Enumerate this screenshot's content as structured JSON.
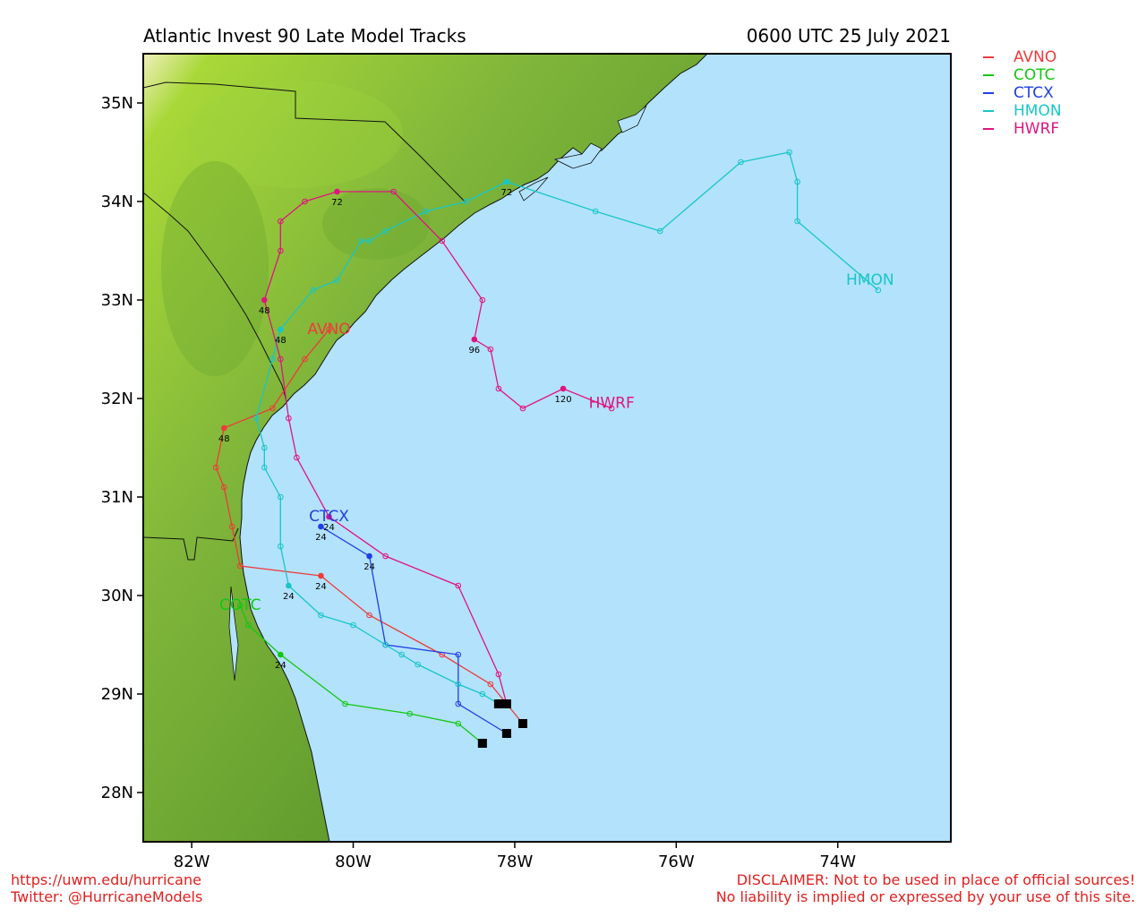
{
  "header": {
    "title": "Atlantic Invest 90 Late Model Tracks",
    "datetime": "0600 UTC 25 July 2021"
  },
  "legend": [
    {
      "name": "AVNO",
      "color": "#ee3b3b"
    },
    {
      "name": "COTC",
      "color": "#12c812"
    },
    {
      "name": "CTCX",
      "color": "#1f3ee6"
    },
    {
      "name": "HMON",
      "color": "#18c6c8"
    },
    {
      "name": "HWRF",
      "color": "#e0147f"
    }
  ],
  "footer": {
    "url": "https://uwm.edu/hurricane",
    "twitter": "Twitter: @HurricaneModels",
    "disclaimer_1": "DISCLAIMER: Not to be used in place of official sources!",
    "disclaimer_2": "No liability is implied or expressed by your use of this site."
  },
  "map": {
    "lon_range": [
      -82.6,
      -72.6
    ],
    "lat_range": [
      27.5,
      35.5
    ],
    "ocean_color": "#b3e2fc",
    "land_color": "#5e9a2c",
    "x_ticks": [
      {
        "v": -82,
        "label": "82W"
      },
      {
        "v": -80,
        "label": "80W"
      },
      {
        "v": -78,
        "label": "78W"
      },
      {
        "v": -76,
        "label": "76W"
      },
      {
        "v": -74,
        "label": "74W"
      }
    ],
    "y_ticks": [
      {
        "v": 28,
        "label": "28N"
      },
      {
        "v": 29,
        "label": "29N"
      },
      {
        "v": 30,
        "label": "30N"
      },
      {
        "v": 31,
        "label": "31N"
      },
      {
        "v": 32,
        "label": "32N"
      },
      {
        "v": 33,
        "label": "33N"
      },
      {
        "v": 34,
        "label": "34N"
      },
      {
        "v": 35,
        "label": "35N"
      }
    ]
  },
  "chart_data": {
    "type": "scatter",
    "series": [
      {
        "name": "AVNO",
        "color": "#ee3b3b",
        "label": {
          "text": "AVNO",
          "lon": -80.3,
          "lat": 32.7
        },
        "points": [
          [
            -77.9,
            28.7
          ],
          [
            -78.3,
            29.1
          ],
          [
            -78.9,
            29.4
          ],
          [
            -79.8,
            29.8
          ],
          [
            -80.4,
            30.2
          ],
          [
            -81.4,
            30.3
          ],
          [
            -81.5,
            30.7
          ],
          [
            -81.6,
            31.1
          ],
          [
            -81.7,
            31.3
          ],
          [
            -81.6,
            31.7
          ],
          [
            -81.0,
            31.9
          ],
          [
            -80.6,
            32.4
          ],
          [
            -80.3,
            32.7
          ]
        ],
        "labels": [
          {
            "i": 4,
            "text": "24"
          },
          {
            "i": 9,
            "text": "48"
          }
        ]
      },
      {
        "name": "COTC",
        "color": "#12c812",
        "label": {
          "text": "COTC",
          "lon": -81.4,
          "lat": 29.9
        },
        "points": [
          [
            -78.4,
            28.5
          ],
          [
            -78.7,
            28.7
          ],
          [
            -79.3,
            28.8
          ],
          [
            -80.1,
            28.9
          ],
          [
            -80.9,
            29.4
          ],
          [
            -81.3,
            29.7
          ],
          [
            -81.4,
            29.9
          ]
        ],
        "labels": [
          {
            "i": 4,
            "text": "24"
          }
        ]
      },
      {
        "name": "CTCX",
        "color": "#1f3ee6",
        "label": {
          "text": "CTCX",
          "lon": -80.3,
          "lat": 30.8
        },
        "points": [
          [
            -78.1,
            28.6
          ],
          [
            -78.7,
            28.9
          ],
          [
            -78.7,
            29.4
          ],
          [
            -79.6,
            29.5
          ],
          [
            -79.8,
            30.4
          ],
          [
            -80.4,
            30.7
          ]
        ],
        "labels": [
          {
            "i": 4,
            "text": "24"
          },
          {
            "i": 5,
            "text": "24"
          }
        ]
      },
      {
        "name": "HMON",
        "color": "#18c6c8",
        "label": {
          "text": "HMON",
          "lon": -73.6,
          "lat": 33.2
        },
        "points": [
          [
            -78.2,
            28.9
          ],
          [
            -78.4,
            29.0
          ],
          [
            -78.7,
            29.1
          ],
          [
            -79.2,
            29.3
          ],
          [
            -79.4,
            29.4
          ],
          [
            -79.6,
            29.5
          ],
          [
            -80.0,
            29.7
          ],
          [
            -80.4,
            29.8
          ],
          [
            -80.8,
            30.1
          ],
          [
            -80.9,
            30.5
          ],
          [
            -80.9,
            31.0
          ],
          [
            -81.1,
            31.3
          ],
          [
            -81.1,
            31.5
          ],
          [
            -81.2,
            31.8
          ],
          [
            -81.0,
            32.4
          ],
          [
            -80.9,
            32.7
          ],
          [
            -80.5,
            33.1
          ],
          [
            -80.2,
            33.2
          ],
          [
            -79.9,
            33.6
          ],
          [
            -79.8,
            33.6
          ],
          [
            -79.6,
            33.7
          ],
          [
            -79.1,
            33.9
          ],
          [
            -78.6,
            34.0
          ],
          [
            -78.1,
            34.2
          ],
          [
            -77.0,
            33.9
          ],
          [
            -76.2,
            33.7
          ],
          [
            -75.2,
            34.4
          ],
          [
            -74.6,
            34.5
          ],
          [
            -74.5,
            34.2
          ],
          [
            -74.5,
            33.8
          ],
          [
            -73.5,
            33.1
          ]
        ],
        "labels": [
          {
            "i": 8,
            "text": "24"
          },
          {
            "i": 15,
            "text": "48"
          },
          {
            "i": 23,
            "text": "72"
          }
        ]
      },
      {
        "name": "HWRF",
        "color": "#e0147f",
        "label": {
          "text": "HWRF",
          "lon": -76.8,
          "lat": 31.95
        },
        "points": [
          [
            -78.1,
            28.9
          ],
          [
            -78.2,
            29.2
          ],
          [
            -78.7,
            30.1
          ],
          [
            -79.6,
            30.4
          ],
          [
            -80.3,
            30.8
          ],
          [
            -80.7,
            31.4
          ],
          [
            -80.8,
            31.8
          ],
          [
            -80.9,
            32.4
          ],
          [
            -81.1,
            33.0
          ],
          [
            -80.9,
            33.5
          ],
          [
            -80.9,
            33.8
          ],
          [
            -80.6,
            34.0
          ],
          [
            -80.2,
            34.1
          ],
          [
            -79.5,
            34.1
          ],
          [
            -78.9,
            33.6
          ],
          [
            -78.4,
            33.0
          ],
          [
            -78.5,
            32.6
          ],
          [
            -78.3,
            32.5
          ],
          [
            -78.2,
            32.1
          ],
          [
            -77.9,
            31.9
          ],
          [
            -77.4,
            32.1
          ],
          [
            -76.8,
            31.9
          ]
        ],
        "labels": [
          {
            "i": 4,
            "text": "24"
          },
          {
            "i": 8,
            "text": "48"
          },
          {
            "i": 12,
            "text": "72"
          },
          {
            "i": 16,
            "text": "96"
          },
          {
            "i": 20,
            "text": "120"
          }
        ]
      }
    ]
  }
}
